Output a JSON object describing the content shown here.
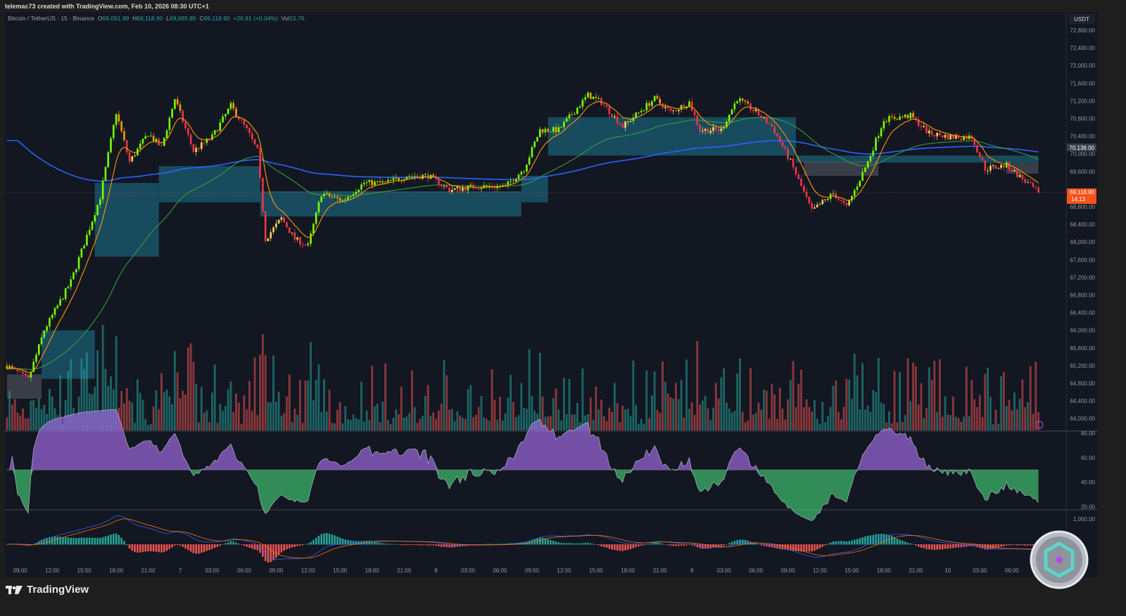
{
  "credit": "telemac73 created with TradingView.com, Feb 10, 2026 08:30 UTC+1",
  "legend": {
    "symbol": "Bitcoin / TetherUS · 15 · Binance",
    "o_label": "O",
    "o": "69,091.99",
    "h_label": "H",
    "h": "69,118.90",
    "l_label": "L",
    "l": "69,065.85",
    "c_label": "C",
    "c": "69,118.90",
    "change": "+26.91 (+0.04%)",
    "vol_label": "Vol",
    "vol": "15.76"
  },
  "currency": "USDT",
  "brand": "TradingView",
  "colors": {
    "up": "#8bc34a",
    "up_strong": "#76ff03",
    "down": "#f23645",
    "down_mid": "#ff9800",
    "neutral": "#ffd54f",
    "ema_fast": "#ff9800",
    "ma_mid": "#2e9e3e",
    "ma_slow": "#2962ff",
    "band": "#1b5e73",
    "band_gray": "#5a5d66",
    "last_price": "#f7521b",
    "vol_up": "#26a69a",
    "vol_down": "#ef5350",
    "rsi_up": "#9c6ade",
    "rsi_down": "#3fbf6f"
  },
  "chart_data": {
    "type": "candlestick",
    "timeframe": "15",
    "price_axis": {
      "ticks": [
        "72,800.00",
        "72,400.00",
        "72,000.00",
        "71,600.00",
        "71,200.00",
        "70,800.00",
        "70,400.00",
        "70,000.00",
        "69,600.00",
        "68,800.00",
        "68,400.00",
        "68,000.00",
        "67,600.00",
        "67,200.00",
        "66,800.00",
        "66,400.00",
        "66,000.00",
        "65,600.00",
        "65,200.00",
        "64,800.00",
        "64,400.00",
        "64,000.00"
      ],
      "range": [
        63800,
        73000
      ]
    },
    "last_price": {
      "value": "69,118.90",
      "countdown": "14:13"
    },
    "marker_price": "70,138.00",
    "time_axis": [
      "09:00",
      "12:00",
      "15:00",
      "18:00",
      "21:00",
      "7",
      "03:00",
      "06:00",
      "09:00",
      "12:00",
      "15:00",
      "18:00",
      "21:00",
      "8",
      "03:00",
      "06:00",
      "09:00",
      "12:00",
      "15:00",
      "18:00",
      "21:00",
      "9",
      "03:00",
      "06:00",
      "09:00",
      "12:00",
      "15:00",
      "18:00",
      "21:00",
      "10",
      "03:00",
      "06:00"
    ],
    "close_path": [
      [
        "6 07:45",
        65200
      ],
      [
        "6 09:45",
        64880
      ],
      [
        "6 11:15",
        66000
      ],
      [
        "6 13:45",
        67100
      ],
      [
        "6 16:30",
        69020
      ],
      [
        "6 18:00",
        70940
      ],
      [
        "6 19:15",
        69820
      ],
      [
        "6 21:00",
        70460
      ],
      [
        "6 22:15",
        70140
      ],
      [
        "6 23:30",
        71250
      ],
      [
        "7 01:15",
        70060
      ],
      [
        "7 03:00",
        70380
      ],
      [
        "7 04:45",
        71090
      ],
      [
        "7 06:15",
        70540
      ],
      [
        "7 07:15",
        70060
      ],
      [
        "7 08:00",
        68070
      ],
      [
        "7 09:30",
        68540
      ],
      [
        "7 10:45",
        68070
      ],
      [
        "7 12:00",
        67910
      ],
      [
        "7 13:15",
        69100
      ],
      [
        "7 15:15",
        68940
      ],
      [
        "7 17:15",
        69340
      ],
      [
        "7 19:15",
        69340
      ],
      [
        "7 21:15",
        69500
      ],
      [
        "7 23:15",
        69500
      ],
      [
        "8 01:15",
        69180
      ],
      [
        "8 03:45",
        69260
      ],
      [
        "8 06:30",
        69260
      ],
      [
        "8 08:15",
        69660
      ],
      [
        "8 09:45",
        70540
      ],
      [
        "8 11:30",
        70540
      ],
      [
        "8 14:15",
        71330
      ],
      [
        "8 15:30",
        71170
      ],
      [
        "8 17:30",
        70620
      ],
      [
        "8 20:30",
        71250
      ],
      [
        "8 22:00",
        70940
      ],
      [
        "8 23:45",
        71170
      ],
      [
        "9 00:45",
        70540
      ],
      [
        "9 02:45",
        70540
      ],
      [
        "9 04:15",
        71250
      ],
      [
        "9 06:00",
        70940
      ],
      [
        "9 07:30",
        70620
      ],
      [
        "9 09:15",
        69820
      ],
      [
        "9 11:15",
        68700
      ],
      [
        "9 13:15",
        69100
      ],
      [
        "9 14:30",
        68780
      ],
      [
        "9 16:30",
        69820
      ],
      [
        "9 18:00",
        70780
      ],
      [
        "9 20:30",
        70860
      ],
      [
        "9 22:15",
        70460
      ],
      [
        "10 00:15",
        70380
      ],
      [
        "10 02:15",
        70380
      ],
      [
        "10 03:30",
        69660
      ],
      [
        "10 05:30",
        69740
      ],
      [
        "10 08:30",
        69118.9
      ]
    ],
    "bands": [
      {
        "from": "6 11:00",
        "to": "6 16:00",
        "top": 66000,
        "bottom": 64900,
        "kind": "band"
      },
      {
        "from": "6 16:00",
        "to": "6 22:00",
        "top": 69340,
        "bottom": 67670,
        "kind": "band"
      },
      {
        "from": "6 22:00",
        "to": "7 07:30",
        "top": 69720,
        "bottom": 68900,
        "kind": "band"
      },
      {
        "from": "7 07:30",
        "to": "8 08:00",
        "top": 69150,
        "bottom": 68580,
        "kind": "band"
      },
      {
        "from": "8 08:00",
        "to": "8 10:30",
        "top": 69500,
        "bottom": 68900,
        "kind": "band"
      },
      {
        "from": "8 10:30",
        "to": "9 09:45",
        "top": 70830,
        "bottom": 69960,
        "kind": "band"
      },
      {
        "from": "9 09:45",
        "to": "10 08:30",
        "top": 69960,
        "bottom": 69800,
        "kind": "band"
      },
      {
        "from": "9 10:30",
        "to": "9 17:30",
        "top": 69830,
        "bottom": 69500,
        "kind": "gray"
      },
      {
        "from": "10 05:30",
        "to": "10 08:30",
        "top": 69800,
        "bottom": 69550,
        "kind": "gray"
      },
      {
        "from": "6 07:45",
        "to": "6 11:00",
        "top": 65000,
        "bottom": 64450,
        "kind": "gray"
      }
    ],
    "rsi_axis": [
      "80.00",
      "60.00",
      "40.00",
      "20.00"
    ],
    "macd_axis": [
      "1,000.00"
    ]
  }
}
